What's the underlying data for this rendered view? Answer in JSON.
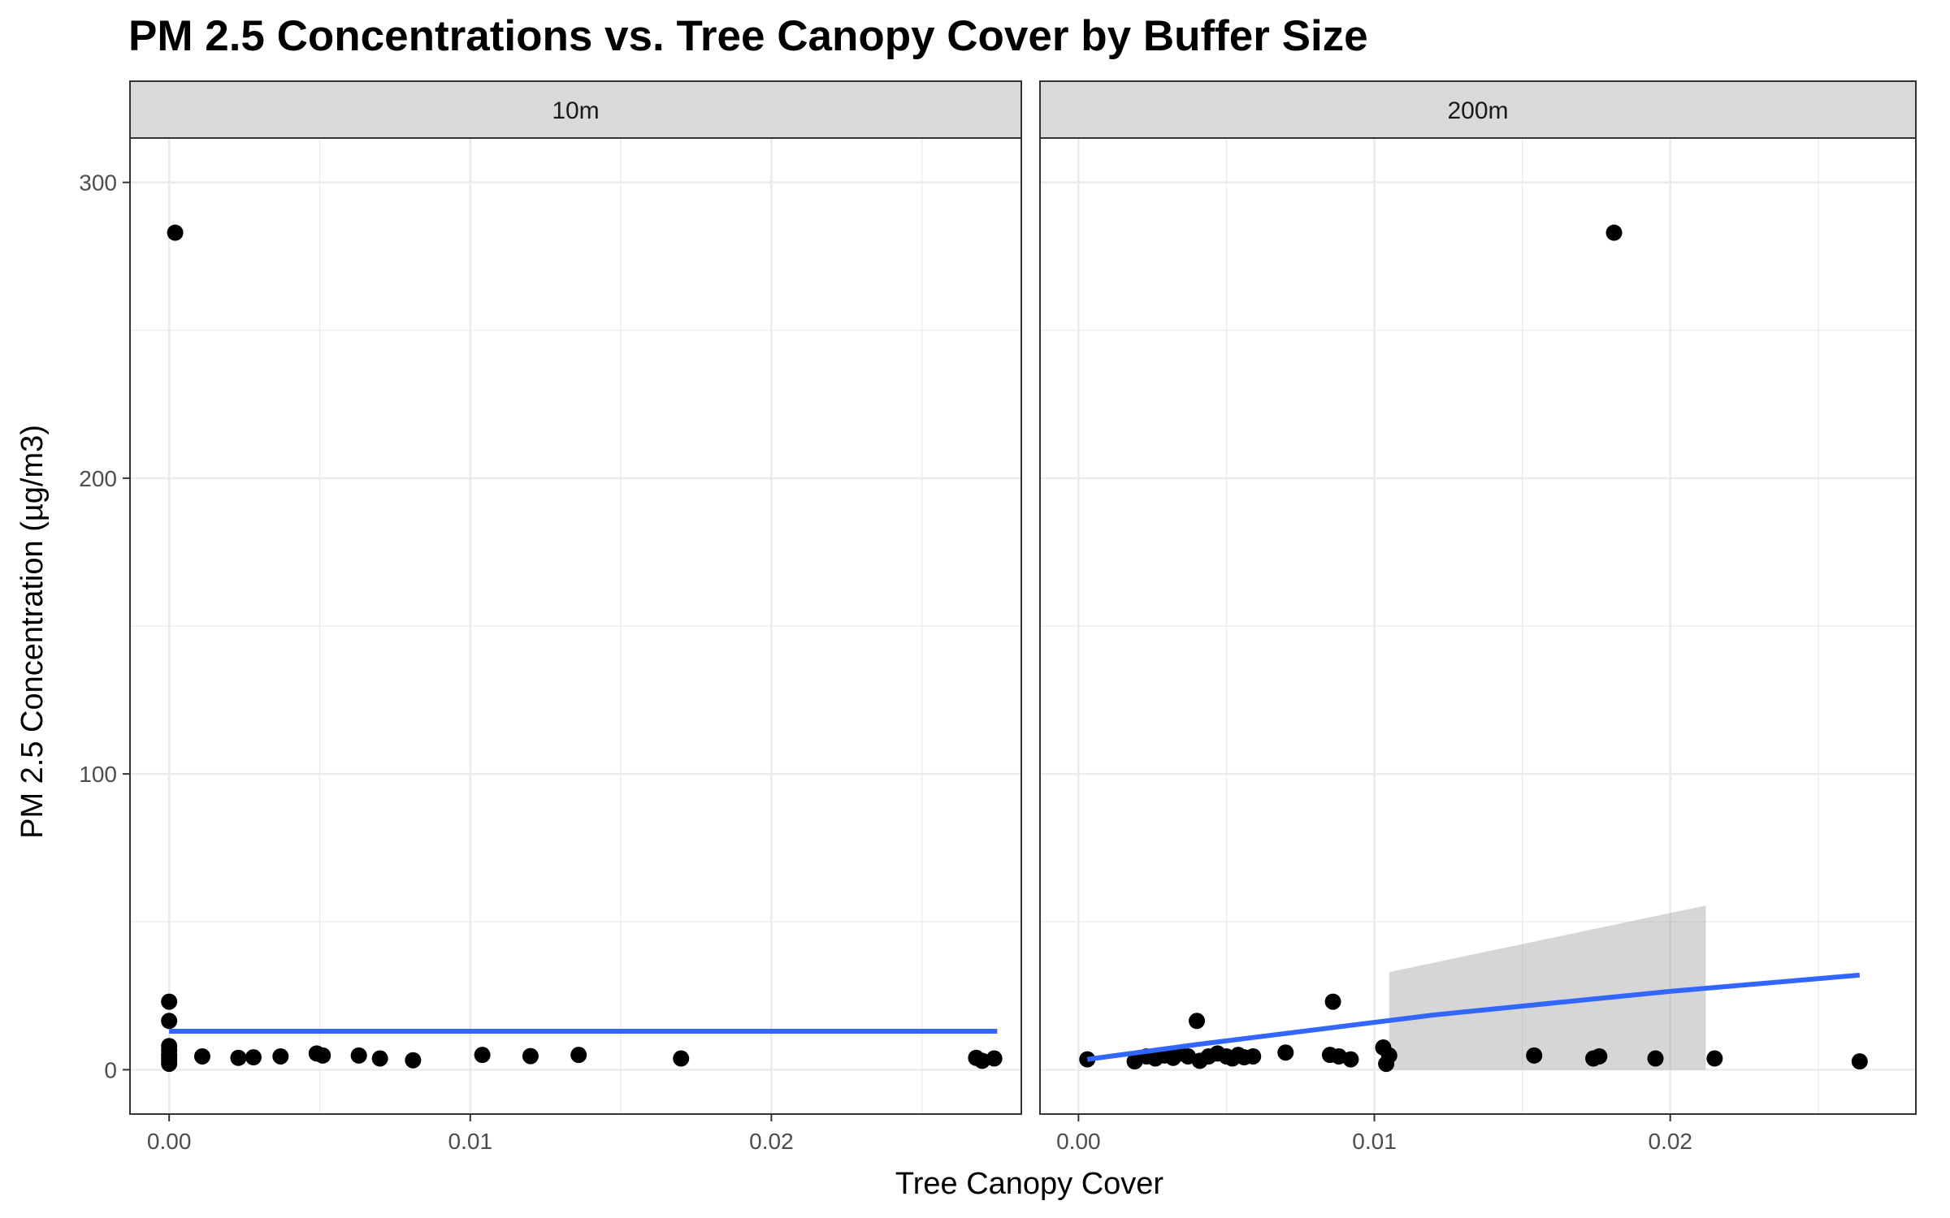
{
  "chart_data": {
    "type": "scatter",
    "title": "PM 2.5 Concentrations vs. Tree Canopy Cover by Buffer Size",
    "xlabel": "Tree Canopy Cover",
    "ylabel": "PM 2.5 Concentration (µg/m3)",
    "xlim": [
      -0.0013,
      0.0283
    ],
    "ylim": [
      -15,
      315
    ],
    "x_ticks": [
      0.0,
      0.01,
      0.02
    ],
    "x_tick_labels": [
      "0.00",
      "0.01",
      "0.02"
    ],
    "y_ticks": [
      0,
      100,
      200,
      300
    ],
    "y_tick_labels": [
      "0",
      "100",
      "200",
      "300"
    ],
    "grid": true,
    "colors": {
      "point": "#000000",
      "smooth_line": "#3366ff",
      "confidence_band": "#999999",
      "strip_bg": "#d9d9d9",
      "grid": "#ebebeb"
    },
    "panels": [
      {
        "label": "10m",
        "points": [
          [
            0.0002,
            283
          ],
          [
            0.0,
            23
          ],
          [
            0.0,
            16.5
          ],
          [
            0.0,
            8
          ],
          [
            0.0,
            6.5
          ],
          [
            0.0,
            5
          ],
          [
            0.0,
            4
          ],
          [
            0.0,
            3
          ],
          [
            0.0,
            2
          ],
          [
            0.0011,
            4.5
          ],
          [
            0.0023,
            4
          ],
          [
            0.0028,
            4.2
          ],
          [
            0.0037,
            4.5
          ],
          [
            0.0049,
            5.5
          ],
          [
            0.0051,
            4.8
          ],
          [
            0.0063,
            4.8
          ],
          [
            0.007,
            3.8
          ],
          [
            0.0081,
            3.2
          ],
          [
            0.0104,
            5
          ],
          [
            0.012,
            4.6
          ],
          [
            0.0136,
            5
          ],
          [
            0.017,
            3.8
          ],
          [
            0.0268,
            4
          ],
          [
            0.027,
            3
          ],
          [
            0.0274,
            3.8
          ]
        ],
        "smooth": [
          [
            0.0,
            13
          ],
          [
            0.0275,
            13
          ]
        ],
        "band": null
      },
      {
        "label": "200m",
        "points": [
          [
            0.0003,
            3.5
          ],
          [
            0.0019,
            2.8
          ],
          [
            0.0023,
            4.5
          ],
          [
            0.0026,
            3.8
          ],
          [
            0.0029,
            4.8
          ],
          [
            0.0032,
            4
          ],
          [
            0.0034,
            5.5
          ],
          [
            0.0037,
            4.5
          ],
          [
            0.004,
            16.5
          ],
          [
            0.0041,
            3
          ],
          [
            0.0044,
            4.5
          ],
          [
            0.0047,
            5.5
          ],
          [
            0.005,
            4.5
          ],
          [
            0.0052,
            3.8
          ],
          [
            0.0054,
            5
          ],
          [
            0.0056,
            4.2
          ],
          [
            0.0059,
            4.5
          ],
          [
            0.007,
            5.8
          ],
          [
            0.0085,
            5
          ],
          [
            0.0086,
            23
          ],
          [
            0.0088,
            4.5
          ],
          [
            0.0092,
            3.5
          ],
          [
            0.0103,
            7.5
          ],
          [
            0.0104,
            2
          ],
          [
            0.0105,
            4.8
          ],
          [
            0.0154,
            4.8
          ],
          [
            0.0174,
            3.8
          ],
          [
            0.0176,
            4.5
          ],
          [
            0.0181,
            283
          ],
          [
            0.0195,
            3.8
          ],
          [
            0.0215,
            3.8
          ],
          [
            0.0264,
            2.8
          ]
        ],
        "smooth": [
          [
            0.0003,
            3.5
          ],
          [
            0.004,
            8.5
          ],
          [
            0.008,
            13.5
          ],
          [
            0.012,
            18.5
          ],
          [
            0.016,
            22.5
          ],
          [
            0.02,
            26.5
          ],
          [
            0.0264,
            32
          ]
        ],
        "band": {
          "x_start": 0.0105,
          "x_end": 0.0212,
          "upper": [
            [
              0.0105,
              33
            ],
            [
              0.0212,
              55.5
            ]
          ],
          "lower": [
            [
              0.0105,
              0
            ],
            [
              0.0212,
              0
            ]
          ]
        }
      }
    ]
  }
}
